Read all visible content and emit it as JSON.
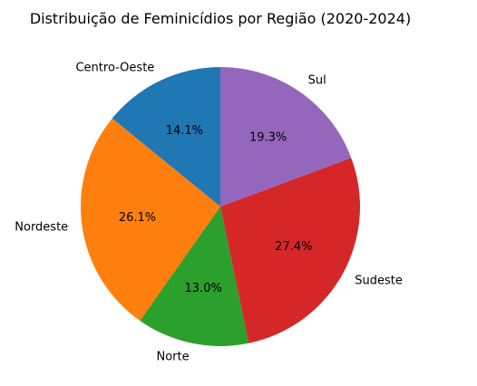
{
  "chart_data": {
    "type": "pie",
    "title": "Distribuição de Feminicídios por Região (2020-2024)",
    "start_angle_deg": 90,
    "direction": "counterclockwise",
    "slices": [
      {
        "label": "Centro-Oeste",
        "value": 14.1,
        "pct_label": "14.1%",
        "color": "#1f77b4"
      },
      {
        "label": "Nordeste",
        "value": 26.1,
        "pct_label": "26.1%",
        "color": "#ff7f0e"
      },
      {
        "label": "Norte",
        "value": 13.0,
        "pct_label": "13.0%",
        "color": "#2ca02c"
      },
      {
        "label": "Sudeste",
        "value": 27.4,
        "pct_label": "27.4%",
        "color": "#d62728"
      },
      {
        "label": "Sul",
        "value": 19.3,
        "pct_label": "19.3%",
        "color": "#9467bd"
      }
    ]
  }
}
